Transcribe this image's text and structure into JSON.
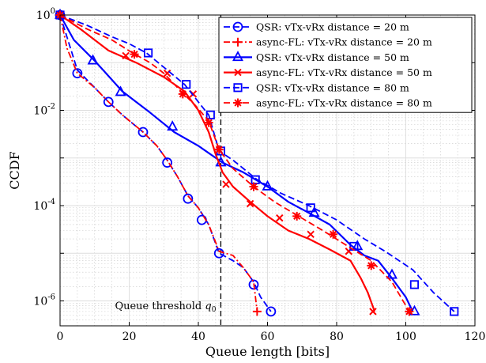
{
  "chart_data": {
    "type": "line",
    "xlabel": "Queue length [bits]",
    "ylabel": "CCDF",
    "xlim": [
      0,
      120
    ],
    "ylim": [
      3e-07,
      1
    ],
    "yscale": "log",
    "x_ticks": [
      0,
      20,
      40,
      60,
      80,
      100,
      120
    ],
    "y_ticks": [
      {
        "value": 1,
        "base": "10",
        "exp": "0"
      },
      {
        "value": 0.01,
        "base": "10",
        "exp": "-2"
      },
      {
        "value": 0.0001,
        "base": "10",
        "exp": "-4"
      },
      {
        "value": 1e-06,
        "base": "10",
        "exp": "-6"
      }
    ],
    "grid": true,
    "legend_position": "top-right",
    "threshold": {
      "x": 46.5,
      "label_text": "Queue threshold ",
      "label_symbol": "q",
      "label_sub": "0"
    },
    "series": [
      {
        "name": "QSR: vTx-vRx distance = 20 m",
        "color": "#0000ff",
        "dash": "dash",
        "marker": "circle",
        "stroke": 1.8,
        "x": [
          0,
          5,
          10,
          14,
          18,
          24,
          28,
          31,
          34,
          37,
          40,
          43,
          46,
          50,
          53,
          56,
          58,
          61
        ],
        "y": [
          1,
          0.07,
          0.03,
          0.015,
          0.008,
          0.0035,
          0.0018,
          0.0009,
          0.0004,
          0.00016,
          9e-05,
          4e-05,
          1e-05,
          7e-06,
          5e-06,
          2.5e-06,
          1.2e-06,
          6e-07
        ],
        "mx": [
          0,
          5,
          14,
          24,
          31,
          37,
          41,
          46,
          56,
          61
        ],
        "my": [
          1,
          0.06,
          0.015,
          0.0035,
          0.0008,
          0.00014,
          5e-05,
          1e-05,
          2.2e-06,
          6e-07
        ]
      },
      {
        "name": "async-FL: vTx-vRx distance = 20 m",
        "color": "#ff0000",
        "dash": "dashdot",
        "marker": "plus",
        "stroke": 1.8,
        "x": [
          0,
          2,
          5,
          10,
          14,
          18,
          24,
          28,
          31,
          34,
          37,
          40,
          43,
          46,
          50,
          53,
          56,
          57
        ],
        "y": [
          1,
          0.2,
          0.06,
          0.03,
          0.015,
          0.008,
          0.0035,
          0.0018,
          0.0009,
          0.0004,
          0.00016,
          9e-05,
          4e-05,
          1.1e-05,
          9e-06,
          5e-06,
          2.5e-06,
          6e-07
        ],
        "mx": [
          0,
          57
        ],
        "my": [
          1,
          6e-07
        ]
      },
      {
        "name": "QSR: vTx-vRx distance = 50 m",
        "color": "#0000ff",
        "dash": "solid",
        "marker": "triangle",
        "stroke": 2.2,
        "x": [
          0,
          4,
          10,
          18,
          26,
          33,
          40,
          47,
          53,
          60,
          66,
          72,
          78,
          84,
          88,
          92,
          96,
          100,
          102
        ],
        "y": [
          1,
          0.3,
          0.11,
          0.025,
          0.009,
          0.0035,
          0.0018,
          0.0008,
          0.0005,
          0.00025,
          0.00012,
          7e-05,
          4e-05,
          1.5e-05,
          9e-06,
          7e-06,
          3e-06,
          1.2e-06,
          6e-07
        ],
        "mx": [
          0,
          9.5,
          17.5,
          32.5,
          46.5,
          60,
          73.5,
          86,
          96,
          102.5
        ],
        "my": [
          1,
          0.11,
          0.024,
          0.0045,
          0.0008,
          0.00025,
          7e-05,
          1.4e-05,
          3.5e-06,
          6e-07
        ]
      },
      {
        "name": "async-FL: vTx-vRx distance = 50 m",
        "color": "#ff0000",
        "dash": "solid",
        "marker": "x",
        "stroke": 2.2,
        "x": [
          0,
          6,
          14,
          22,
          30,
          36,
          40,
          43,
          45,
          47,
          50,
          55,
          60,
          66,
          72,
          78,
          84,
          87,
          89,
          91
        ],
        "y": [
          1,
          0.5,
          0.18,
          0.1,
          0.05,
          0.025,
          0.01,
          0.0035,
          0.0012,
          0.0005,
          0.00025,
          0.00012,
          6e-05,
          3e-05,
          2e-05,
          1.2e-05,
          7e-06,
          3e-06,
          1.5e-06,
          6e-07
        ],
        "mx": [
          0,
          19,
          31,
          38.5,
          48,
          55,
          63.5,
          72.5,
          83.5,
          90.5
        ],
        "my": [
          1,
          0.14,
          0.06,
          0.022,
          0.00028,
          0.00011,
          5.5e-05,
          2.5e-05,
          1.1e-05,
          6e-07
        ]
      },
      {
        "name": "QSR: vTx-vRx distance = 80 m",
        "color": "#0000ff",
        "dash": "dash",
        "marker": "square",
        "stroke": 1.8,
        "x": [
          0,
          8,
          15,
          20,
          25,
          31,
          36,
          40,
          43,
          46,
          50,
          57,
          64,
          72,
          80,
          88,
          94,
          102,
          108,
          114
        ],
        "y": [
          1,
          0.6,
          0.35,
          0.25,
          0.16,
          0.07,
          0.035,
          0.015,
          0.008,
          0.0014,
          0.0009,
          0.00035,
          0.00018,
          0.0001,
          5e-05,
          2e-05,
          1.1e-05,
          4.5e-06,
          1.5e-06,
          6e-07
        ],
        "mx": [
          0,
          25.5,
          36.5,
          43.5,
          46.5,
          56.5,
          72.5,
          85,
          102.5,
          114
        ],
        "my": [
          1,
          0.16,
          0.035,
          0.008,
          0.0014,
          0.00035,
          9e-05,
          1.4e-05,
          2.2e-06,
          6e-07
        ]
      },
      {
        "name": "async-FL: vTx-vRx distance = 80 m",
        "color": "#ff0000",
        "dash": "dash",
        "marker": "asterisk",
        "stroke": 1.8,
        "x": [
          0,
          8,
          15,
          21,
          26,
          30,
          35,
          39,
          43,
          46,
          50,
          56,
          62,
          69,
          76,
          84,
          90,
          96,
          101
        ],
        "y": [
          1,
          0.5,
          0.3,
          0.16,
          0.1,
          0.06,
          0.025,
          0.013,
          0.006,
          0.0015,
          0.0006,
          0.00025,
          0.00012,
          6e-05,
          3e-05,
          1.3e-05,
          7e-06,
          2.5e-06,
          6e-07
        ],
        "mx": [
          0,
          21.5,
          35.5,
          43,
          46,
          56,
          68.5,
          79,
          90,
          101
        ],
        "my": [
          1,
          0.15,
          0.022,
          0.0055,
          0.0015,
          0.00025,
          6e-05,
          2.5e-05,
          5.5e-06,
          6e-07
        ]
      }
    ]
  }
}
